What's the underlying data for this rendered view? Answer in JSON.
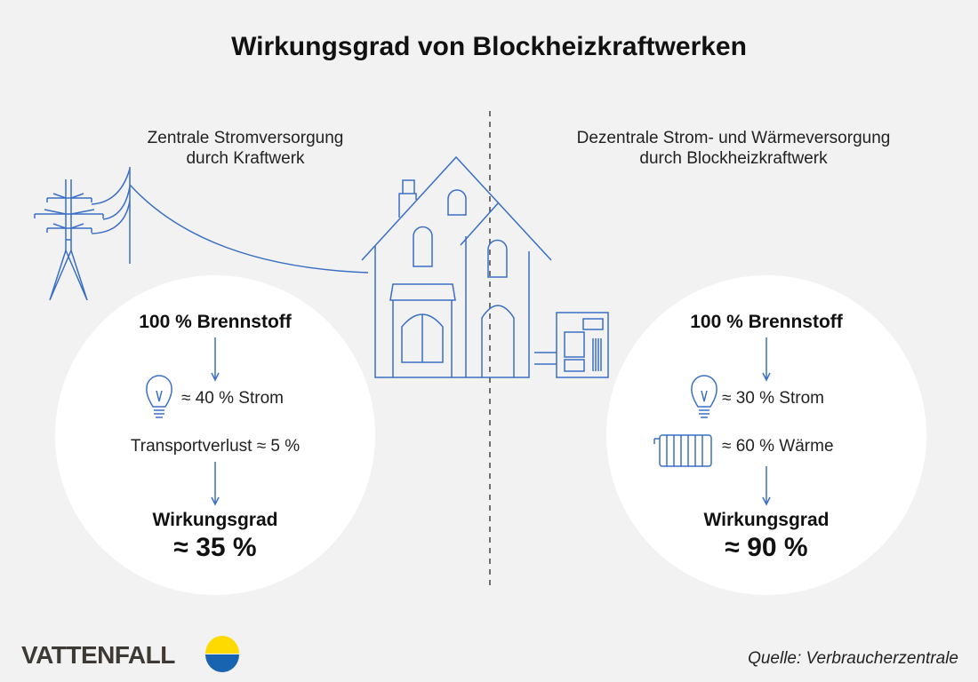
{
  "title": "Wirkungsgrad von Blockheizkraftwerken",
  "accent_color": "#3a6fc4",
  "left": {
    "heading_line1": "Zentrale Stromversorgung",
    "heading_line2": "durch Kraftwerk",
    "fuel": "100 % Brennstoff",
    "electricity": "≈ 40 % Strom",
    "loss": "Transportverlust ≈ 5 %",
    "efficiency_label": "Wirkungsgrad",
    "efficiency_value": "≈ 35 %",
    "icons": [
      "power-pylon-icon",
      "light-bulb-icon"
    ]
  },
  "right": {
    "heading_line1": "Dezentrale Strom- und Wärmeversorgung",
    "heading_line2": "durch Blockheizkraftwerk",
    "fuel": "100 % Brennstoff",
    "electricity": "≈ 30 % Strom",
    "heat": "≈ 60 % Wärme",
    "efficiency_label": "Wirkungsgrad",
    "efficiency_value": "≈ 90 %",
    "icons": [
      "light-bulb-icon",
      "radiator-icon",
      "chp-unit-icon"
    ]
  },
  "logo": {
    "text": "VATTENFALL",
    "colors": [
      "#ffda00",
      "#1964b0"
    ]
  },
  "source": "Quelle: Verbraucherzentrale"
}
